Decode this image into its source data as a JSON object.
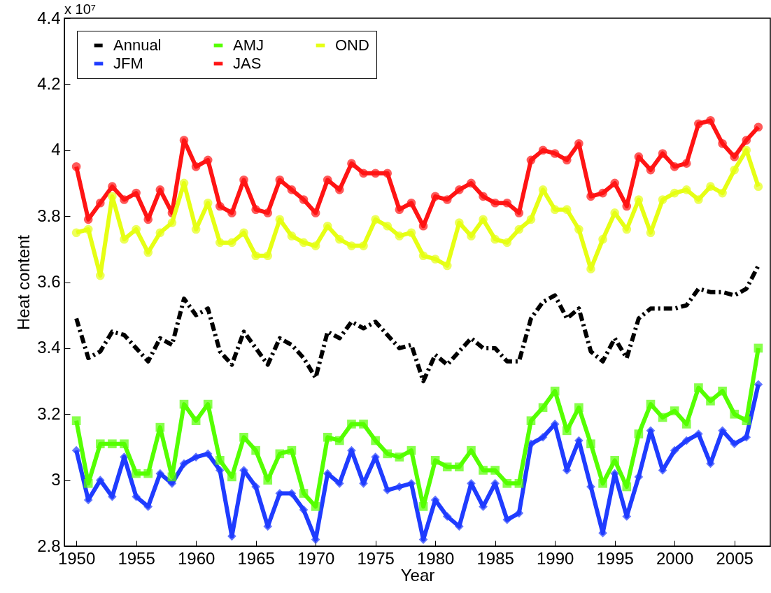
{
  "chart_data": {
    "type": "line",
    "xlabel": "Year",
    "ylabel": "Heat content",
    "annotations": [
      "x 10⁷"
    ],
    "x": [
      1950,
      1951,
      1952,
      1953,
      1954,
      1955,
      1956,
      1957,
      1958,
      1959,
      1960,
      1961,
      1962,
      1963,
      1964,
      1965,
      1966,
      1967,
      1968,
      1969,
      1970,
      1971,
      1972,
      1973,
      1974,
      1975,
      1976,
      1977,
      1978,
      1979,
      1980,
      1981,
      1982,
      1983,
      1984,
      1985,
      1986,
      1987,
      1988,
      1989,
      1990,
      1991,
      1992,
      1993,
      1994,
      1995,
      1996,
      1997,
      1998,
      1999,
      2000,
      2001,
      2002,
      2003,
      2004,
      2005,
      2006,
      2007
    ],
    "xlim": [
      1949,
      2008
    ],
    "xticks": [
      1950,
      1955,
      1960,
      1965,
      1970,
      1975,
      1980,
      1985,
      1990,
      1995,
      2000,
      2005
    ],
    "ylim": [
      2.8,
      4.4
    ],
    "yticks": [
      2.8,
      3,
      3.2,
      3.4,
      3.6,
      3.8,
      4,
      4.2,
      4.4
    ],
    "grid": false,
    "legend": "top left",
    "series": [
      {
        "name": "Annual",
        "color": "#000000",
        "line_style": "dashed",
        "marker": "none",
        "values": [
          3.49,
          3.37,
          3.39,
          3.45,
          3.44,
          3.4,
          3.36,
          3.43,
          3.41,
          3.55,
          3.5,
          3.52,
          3.39,
          3.35,
          3.45,
          3.4,
          3.35,
          3.43,
          3.41,
          3.37,
          3.31,
          3.45,
          3.43,
          3.48,
          3.46,
          3.48,
          3.44,
          3.4,
          3.41,
          3.3,
          3.38,
          3.35,
          3.39,
          3.43,
          3.4,
          3.4,
          3.36,
          3.36,
          3.49,
          3.54,
          3.56,
          3.49,
          3.52,
          3.39,
          3.36,
          3.43,
          3.37,
          3.49,
          3.52,
          3.52,
          3.52,
          3.53,
          3.58,
          3.57,
          3.57,
          3.56,
          3.58,
          3.65
        ]
      },
      {
        "name": "JFM",
        "color": "#1f3cff",
        "line_style": "solid",
        "marker": "diamond",
        "values": [
          3.09,
          2.94,
          3.0,
          2.95,
          3.07,
          2.95,
          2.92,
          3.02,
          2.99,
          3.05,
          3.07,
          3.08,
          3.03,
          2.83,
          3.03,
          2.98,
          2.86,
          2.96,
          2.96,
          2.91,
          2.82,
          3.02,
          2.99,
          3.09,
          2.99,
          3.07,
          2.97,
          2.98,
          2.99,
          2.82,
          2.94,
          2.89,
          2.86,
          2.99,
          2.92,
          2.99,
          2.88,
          2.9,
          3.11,
          3.13,
          3.17,
          3.03,
          3.12,
          2.98,
          2.84,
          3.02,
          2.89,
          3.01,
          3.15,
          3.03,
          3.09,
          3.12,
          3.14,
          3.05,
          3.15,
          3.11,
          3.13,
          3.29
        ]
      },
      {
        "name": "AMJ",
        "color": "#55ff00",
        "line_style": "solid",
        "marker": "square",
        "values": [
          3.18,
          2.99,
          3.11,
          3.11,
          3.11,
          3.02,
          3.02,
          3.16,
          3.01,
          3.23,
          3.18,
          3.23,
          3.06,
          3.01,
          3.13,
          3.09,
          3.0,
          3.08,
          3.09,
          2.96,
          2.92,
          3.13,
          3.12,
          3.17,
          3.17,
          3.12,
          3.08,
          3.07,
          3.09,
          2.92,
          3.06,
          3.04,
          3.04,
          3.09,
          3.03,
          3.03,
          2.99,
          2.99,
          3.18,
          3.22,
          3.27,
          3.15,
          3.22,
          3.11,
          2.99,
          3.06,
          2.98,
          3.14,
          3.23,
          3.19,
          3.21,
          3.17,
          3.28,
          3.24,
          3.27,
          3.2,
          3.18,
          3.4
        ]
      },
      {
        "name": "JAS",
        "color": "#ff1414",
        "line_style": "solid",
        "marker": "circle",
        "values": [
          3.95,
          3.79,
          3.84,
          3.89,
          3.85,
          3.87,
          3.79,
          3.88,
          3.81,
          4.03,
          3.95,
          3.97,
          3.83,
          3.81,
          3.91,
          3.82,
          3.81,
          3.91,
          3.88,
          3.85,
          3.81,
          3.91,
          3.88,
          3.96,
          3.93,
          3.93,
          3.93,
          3.82,
          3.84,
          3.77,
          3.86,
          3.85,
          3.88,
          3.9,
          3.86,
          3.84,
          3.84,
          3.81,
          3.97,
          4.0,
          3.99,
          3.97,
          4.02,
          3.86,
          3.87,
          3.9,
          3.83,
          3.98,
          3.94,
          3.99,
          3.95,
          3.96,
          4.08,
          4.09,
          4.02,
          3.98,
          4.03,
          4.07
        ]
      },
      {
        "name": "OND",
        "color": "#e6ff14",
        "line_style": "solid",
        "marker": "circle",
        "values": [
          3.75,
          3.76,
          3.62,
          3.86,
          3.73,
          3.76,
          3.69,
          3.75,
          3.78,
          3.9,
          3.76,
          3.84,
          3.72,
          3.72,
          3.75,
          3.68,
          3.68,
          3.79,
          3.74,
          3.72,
          3.71,
          3.77,
          3.73,
          3.71,
          3.71,
          3.79,
          3.77,
          3.74,
          3.75,
          3.68,
          3.67,
          3.65,
          3.78,
          3.74,
          3.79,
          3.73,
          3.72,
          3.76,
          3.79,
          3.88,
          3.82,
          3.82,
          3.76,
          3.64,
          3.73,
          3.81,
          3.76,
          3.85,
          3.75,
          3.85,
          3.87,
          3.88,
          3.85,
          3.89,
          3.87,
          3.94,
          4.0,
          3.89
        ]
      }
    ]
  }
}
